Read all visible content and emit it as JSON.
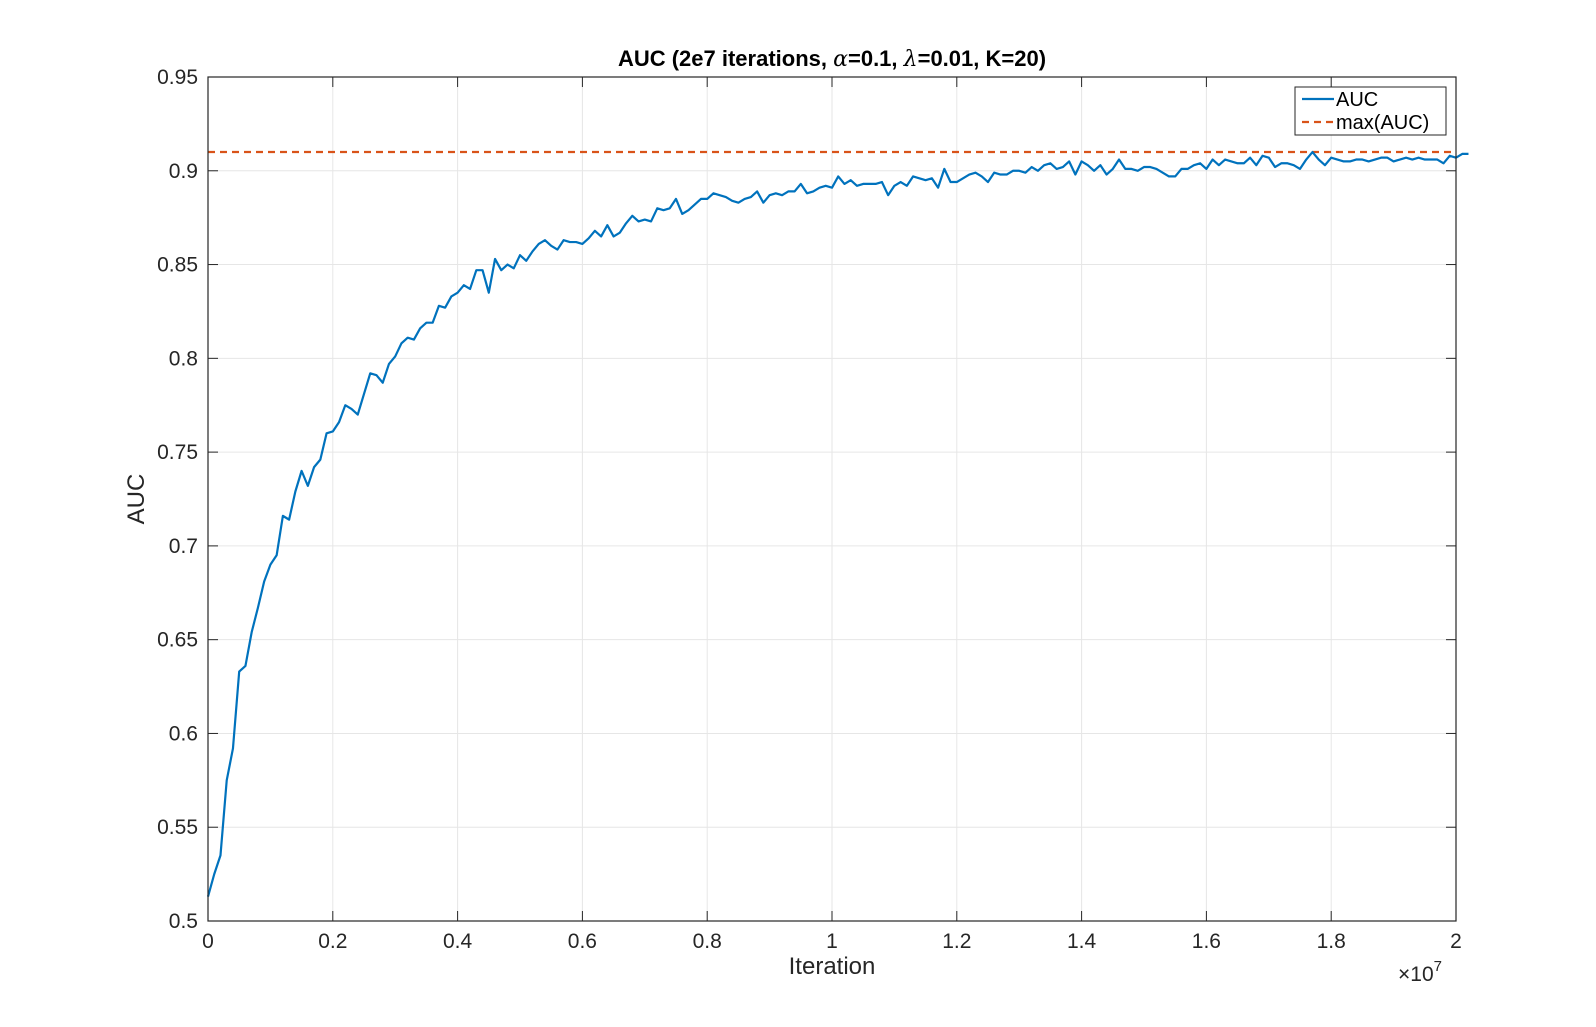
{
  "chart_data": {
    "type": "line",
    "title": "AUC (2e7 iterations, α=0.1, λ=0.01, K=20)",
    "title_parts": {
      "prefix": "AUC (2e7 iterations, ",
      "alpha_symbol": "α",
      "middle": "=0.1, ",
      "lambda_symbol": "λ",
      "suffix": "=0.01, K=20)"
    },
    "xlabel": "Iteration",
    "ylabel": "AUC",
    "x_exponent": {
      "base": "×10",
      "power": "7"
    },
    "xlim": [
      0,
      20000000
    ],
    "ylim": [
      0.5,
      0.95
    ],
    "xticks": [
      0,
      2000000,
      4000000,
      6000000,
      8000000,
      10000000,
      12000000,
      14000000,
      16000000,
      18000000,
      20000000
    ],
    "xtick_labels": [
      "0",
      "0.2",
      "0.4",
      "0.6",
      "0.8",
      "1",
      "1.2",
      "1.4",
      "1.6",
      "1.8",
      "2"
    ],
    "yticks": [
      0.5,
      0.55,
      0.6,
      0.65,
      0.7,
      0.75,
      0.8,
      0.85,
      0.9,
      0.95
    ],
    "ytick_labels": [
      "0.5",
      "0.55",
      "0.6",
      "0.65",
      "0.7",
      "0.75",
      "0.8",
      "0.85",
      "0.9",
      "0.95"
    ],
    "grid": true,
    "legend_position": "top-right",
    "series": [
      {
        "name": "AUC",
        "color": "#0072BD",
        "style": "solid",
        "x_step": 100000,
        "values": [
          0.513,
          0.525,
          0.535,
          0.575,
          0.592,
          0.633,
          0.636,
          0.654,
          0.667,
          0.681,
          0.69,
          0.695,
          0.716,
          0.714,
          0.729,
          0.74,
          0.732,
          0.742,
          0.746,
          0.76,
          0.761,
          0.766,
          0.775,
          0.773,
          0.77,
          0.781,
          0.792,
          0.791,
          0.787,
          0.797,
          0.801,
          0.808,
          0.811,
          0.81,
          0.816,
          0.819,
          0.819,
          0.828,
          0.827,
          0.833,
          0.835,
          0.839,
          0.837,
          0.847,
          0.847,
          0.835,
          0.853,
          0.847,
          0.85,
          0.848,
          0.855,
          0.852,
          0.857,
          0.861,
          0.863,
          0.86,
          0.858,
          0.863,
          0.862,
          0.862,
          0.861,
          0.864,
          0.868,
          0.865,
          0.871,
          0.865,
          0.867,
          0.872,
          0.876,
          0.873,
          0.874,
          0.873,
          0.88,
          0.879,
          0.88,
          0.885,
          0.877,
          0.879,
          0.882,
          0.885,
          0.885,
          0.888,
          0.887,
          0.886,
          0.884,
          0.883,
          0.885,
          0.886,
          0.889,
          0.883,
          0.887,
          0.888,
          0.887,
          0.889,
          0.889,
          0.893,
          0.888,
          0.889,
          0.891,
          0.892,
          0.891,
          0.897,
          0.893,
          0.895,
          0.892,
          0.893,
          0.893,
          0.893,
          0.894,
          0.887,
          0.892,
          0.894,
          0.892,
          0.897,
          0.896,
          0.895,
          0.896,
          0.891,
          0.901,
          0.894,
          0.894,
          0.896,
          0.898,
          0.899,
          0.897,
          0.894,
          0.899,
          0.898,
          0.898,
          0.9,
          0.9,
          0.899,
          0.902,
          0.9,
          0.903,
          0.904,
          0.901,
          0.902,
          0.905,
          0.898,
          0.905,
          0.903,
          0.9,
          0.903,
          0.898,
          0.901,
          0.906,
          0.901,
          0.901,
          0.9,
          0.902,
          0.902,
          0.901,
          0.899,
          0.897,
          0.897,
          0.901,
          0.901,
          0.903,
          0.904,
          0.901,
          0.906,
          0.903,
          0.906,
          0.905,
          0.904,
          0.904,
          0.907,
          0.903,
          0.908,
          0.907,
          0.902,
          0.904,
          0.904,
          0.903,
          0.901,
          0.906,
          0.91,
          0.906,
          0.903,
          0.907,
          0.906,
          0.905,
          0.905,
          0.906,
          0.906,
          0.905,
          0.906,
          0.907,
          0.907,
          0.905,
          0.906,
          0.907,
          0.906,
          0.907,
          0.906,
          0.906,
          0.906,
          0.904,
          0.908,
          0.907,
          0.909,
          0.909
        ]
      },
      {
        "name": "max(AUC)",
        "color": "#D95319",
        "style": "dashed",
        "constant": 0.91
      }
    ]
  }
}
